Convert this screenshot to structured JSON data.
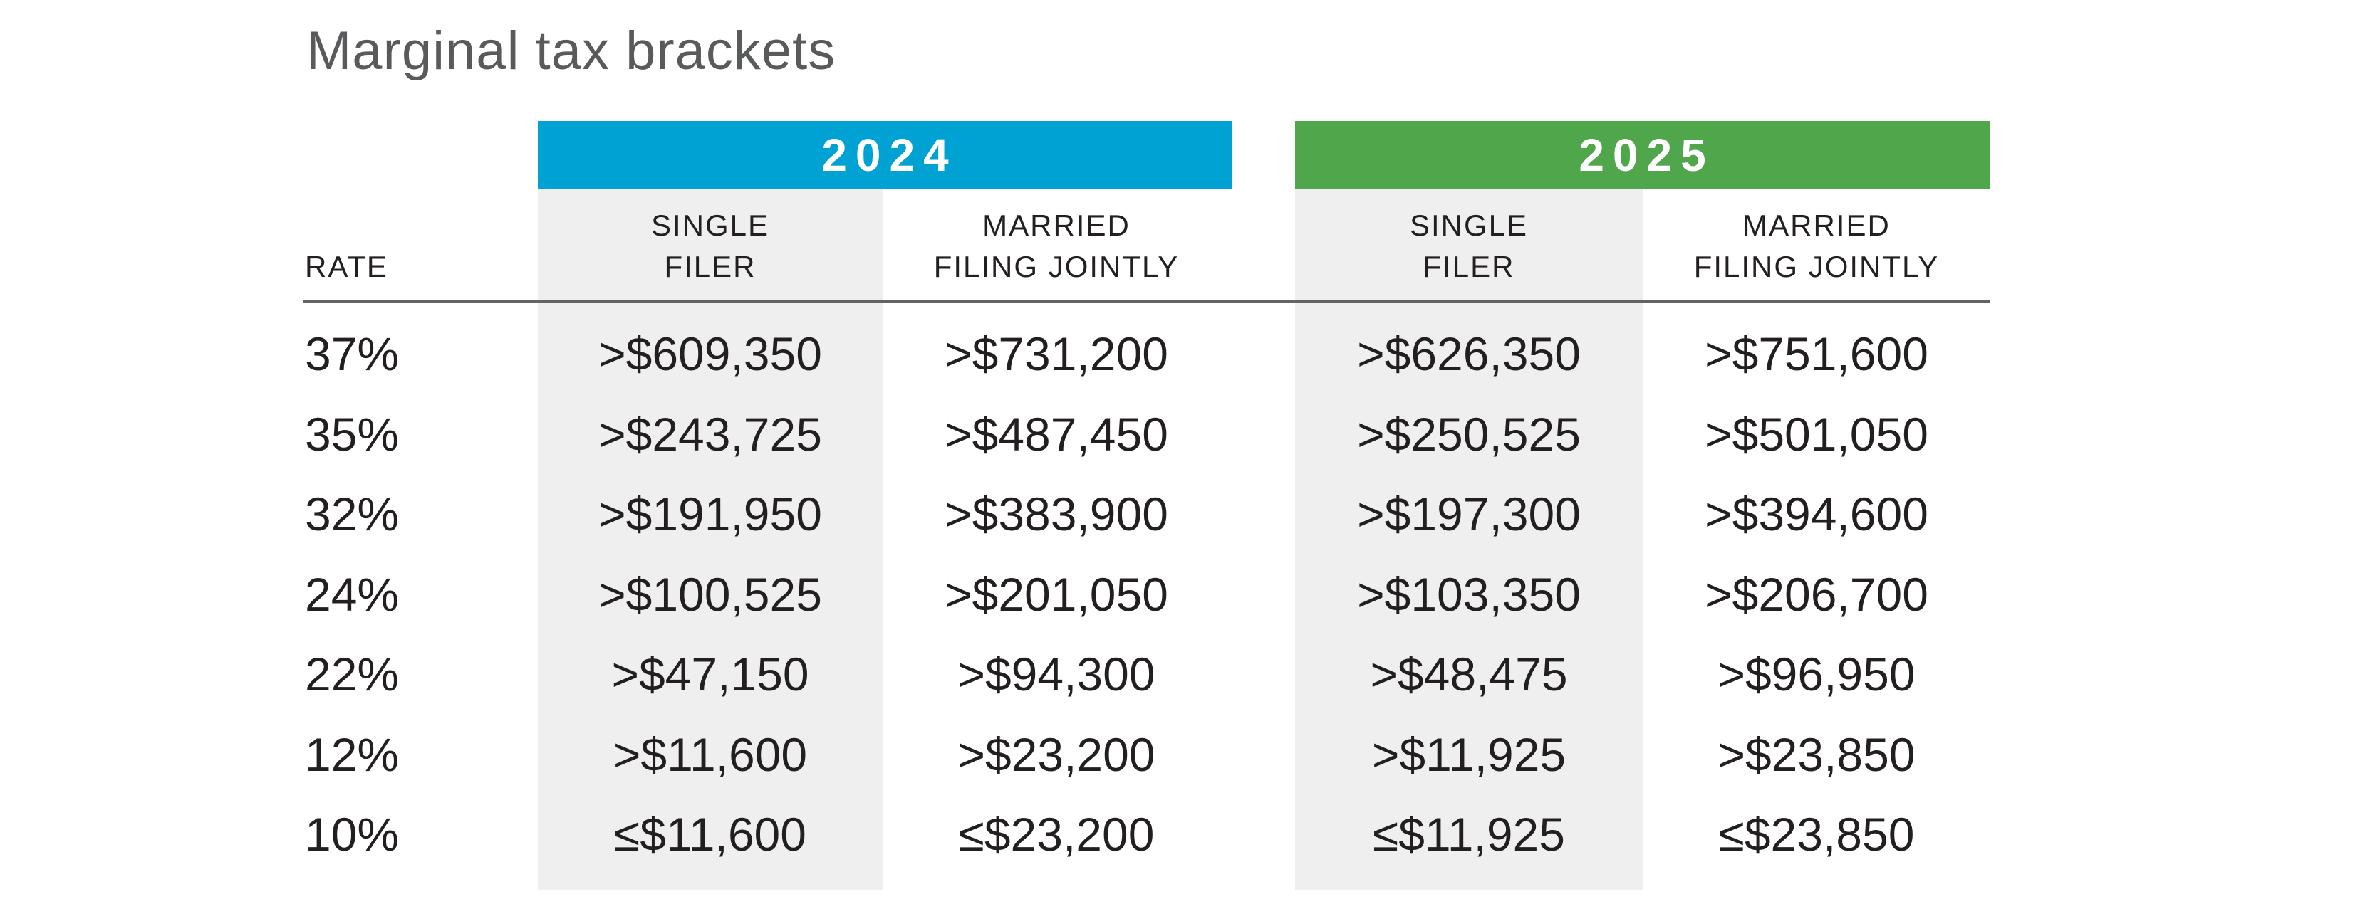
{
  "title": "Marginal tax brackets",
  "colors": {
    "band_2024_blue": "#00A2D4",
    "band_2025_green": "#50A64A",
    "column_shading": "#EFEFEF",
    "body_text": "#231F20",
    "title_text": "#595A5C",
    "rule": "#636466"
  },
  "chart_data": {
    "type": "table",
    "title": "Marginal tax brackets",
    "headers": {
      "rate": "RATE",
      "groups": [
        {
          "year": "2024",
          "cols": [
            {
              "l1": "SINGLE",
              "l2": "FILER"
            },
            {
              "l1": "MARRIED",
              "l2": "FILING JOINTLY"
            }
          ]
        },
        {
          "year": "2025",
          "cols": [
            {
              "l1": "SINGLE",
              "l2": "FILER"
            },
            {
              "l1": "MARRIED",
              "l2": "FILING JOINTLY"
            }
          ]
        }
      ]
    },
    "rows": [
      {
        "rate": "37%",
        "single_2024": ">$609,350",
        "married_2024": ">$731,200",
        "single_2025": ">$626,350",
        "married_2025": ">$751,600"
      },
      {
        "rate": "35%",
        "single_2024": ">$243,725",
        "married_2024": ">$487,450",
        "single_2025": ">$250,525",
        "married_2025": ">$501,050"
      },
      {
        "rate": "32%",
        "single_2024": ">$191,950",
        "married_2024": ">$383,900",
        "single_2025": ">$197,300",
        "married_2025": ">$394,600"
      },
      {
        "rate": "24%",
        "single_2024": ">$100,525",
        "married_2024": ">$201,050",
        "single_2025": ">$103,350",
        "married_2025": ">$206,700"
      },
      {
        "rate": "22%",
        "single_2024": ">$47,150",
        "married_2024": ">$94,300",
        "single_2025": ">$48,475",
        "married_2025": ">$96,950"
      },
      {
        "rate": "12%",
        "single_2024": ">$11,600",
        "married_2024": ">$23,200",
        "single_2025": ">$11,925",
        "married_2025": ">$23,850"
      },
      {
        "rate": "10%",
        "single_2024": "≤$11,600",
        "married_2024": "≤$23,200",
        "single_2025": "≤$11,925",
        "married_2025": "≤$23,850"
      }
    ]
  }
}
